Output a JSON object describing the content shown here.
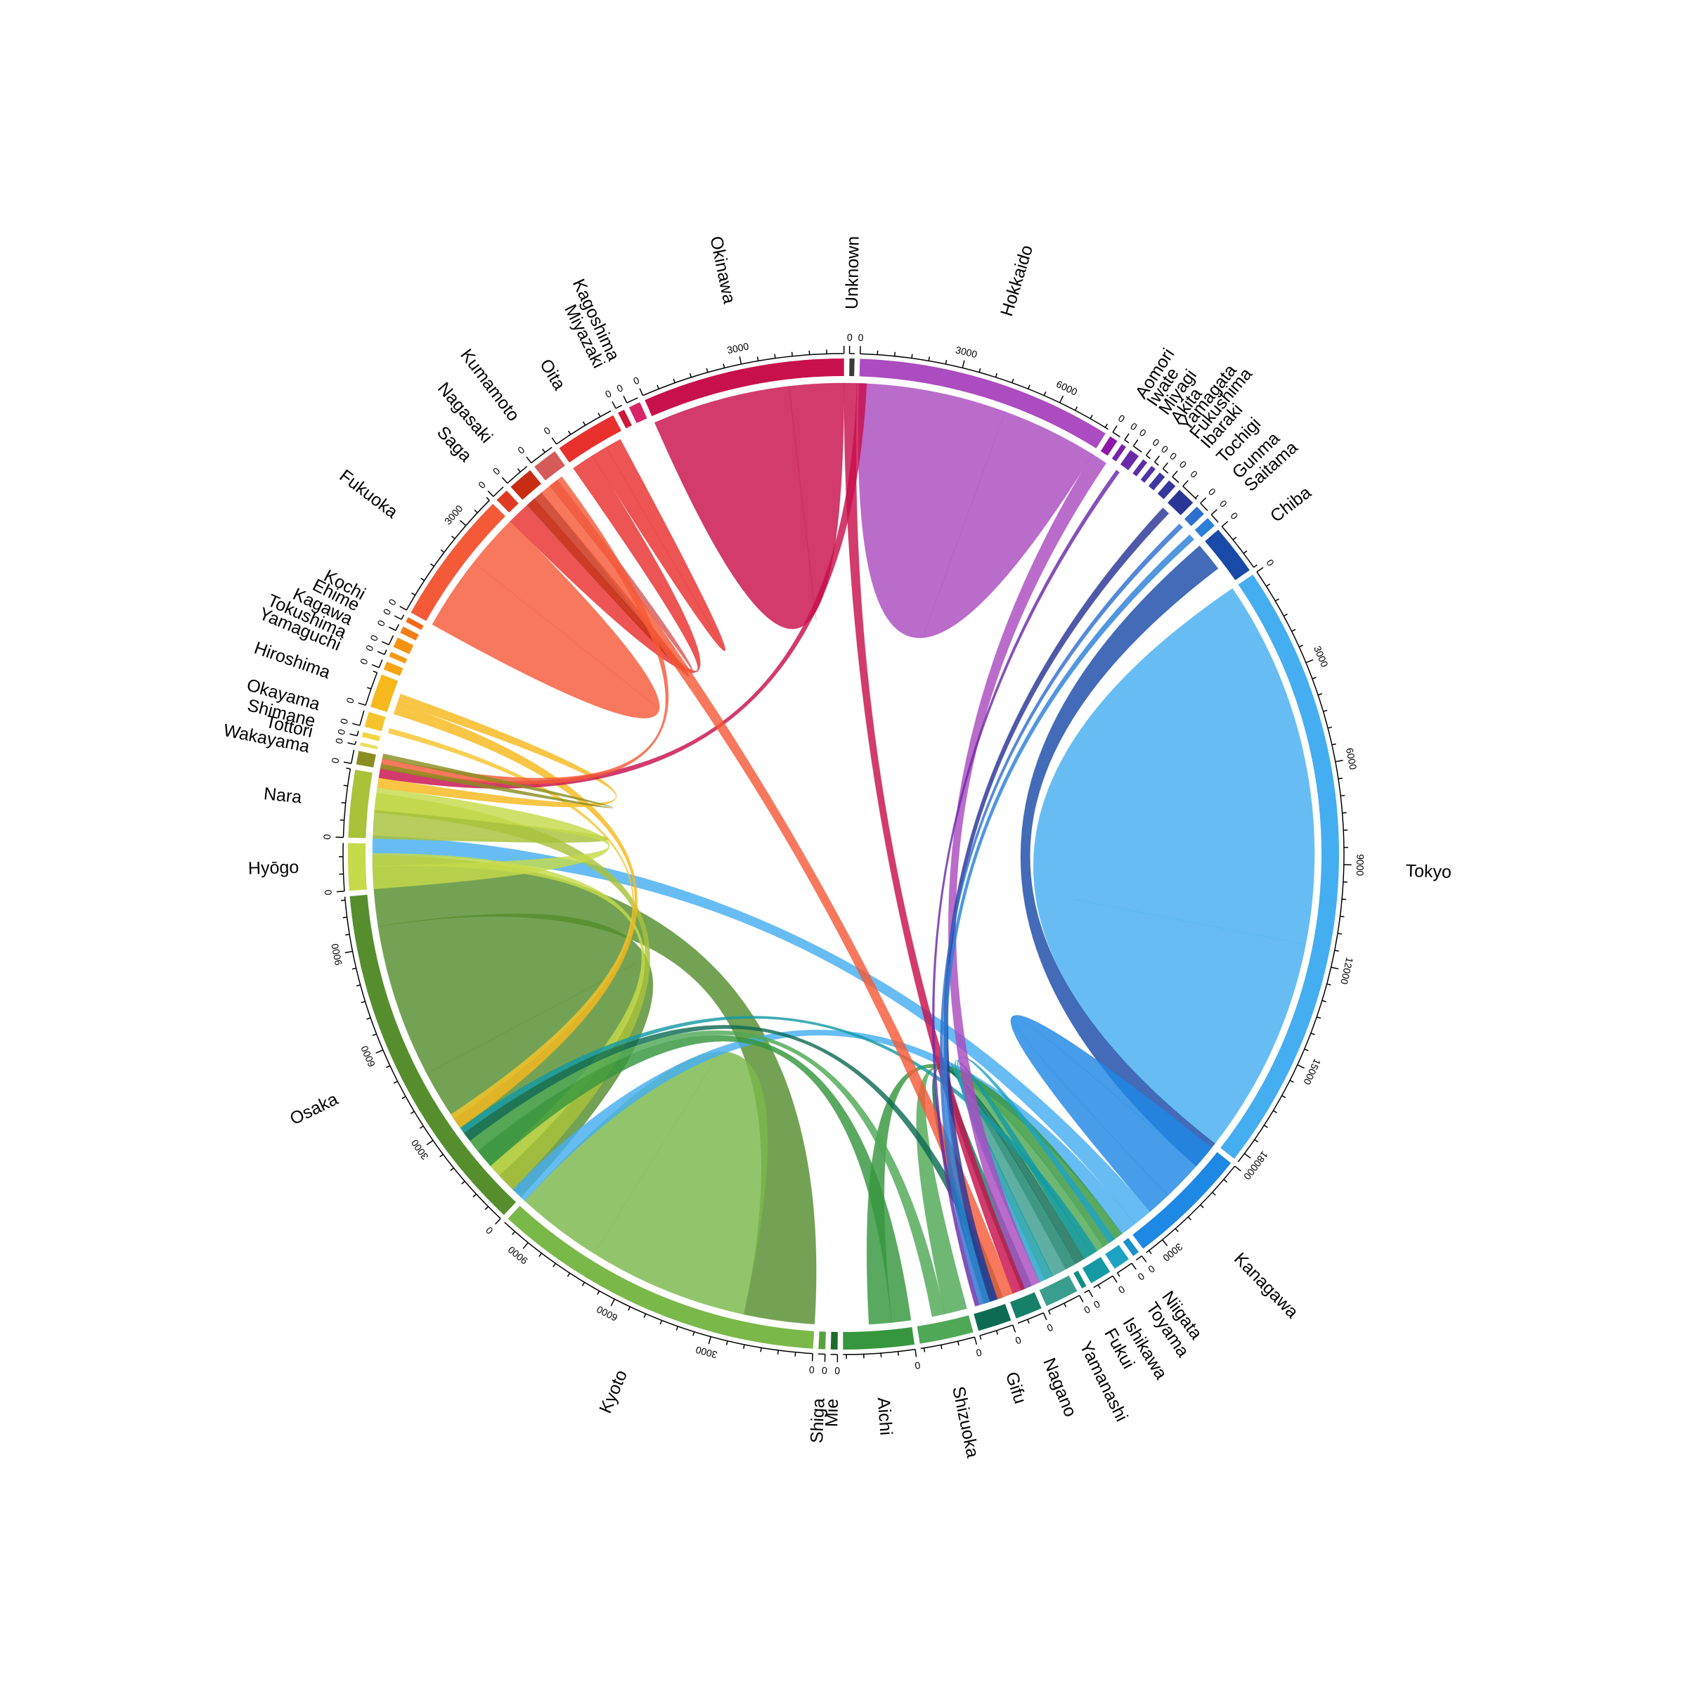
{
  "chart_data": {
    "type": "chord",
    "title": "",
    "segments": [
      {
        "name": "Unknown",
        "value": 150,
        "color": "#3a3a3a",
        "tick_labels": [
          "0"
        ]
      },
      {
        "name": "Hokkaido",
        "value": 7600,
        "color": "#ab4cc0",
        "tick_labels": [
          "0",
          "3000",
          "6000"
        ]
      },
      {
        "name": "Aomori",
        "value": 250,
        "color": "#8e16a8",
        "tick_labels": [
          "0"
        ]
      },
      {
        "name": "Iwate",
        "value": 150,
        "color": "#7a22a8",
        "tick_labels": [
          "0"
        ]
      },
      {
        "name": "Miyagi",
        "value": 300,
        "color": "#6a2aaa",
        "tick_labels": [
          "0"
        ]
      },
      {
        "name": "Akita",
        "value": 150,
        "color": "#5c2ea6",
        "tick_labels": [
          "0"
        ]
      },
      {
        "name": "Yamagata",
        "value": 150,
        "color": "#4f33a6",
        "tick_labels": [
          "0"
        ]
      },
      {
        "name": "Fukushima",
        "value": 200,
        "color": "#3f35a3",
        "tick_labels": [
          "0"
        ]
      },
      {
        "name": "Ibaraki",
        "value": 250,
        "color": "#35369e",
        "tick_labels": [
          "0"
        ]
      },
      {
        "name": "Tochigi",
        "value": 550,
        "color": "#2a3596",
        "tick_labels": [
          "0"
        ]
      },
      {
        "name": "Gunma",
        "value": 300,
        "color": "#2f6fd0",
        "tick_labels": [
          "0"
        ]
      },
      {
        "name": "Saitama",
        "value": 300,
        "color": "#2a80d8",
        "tick_labels": [
          "0"
        ]
      },
      {
        "name": "Chiba",
        "value": 1500,
        "color": "#1a4aa8",
        "tick_labels": [
          "0"
        ]
      },
      {
        "name": "Tokyo",
        "value": 18300,
        "color": "#45aef0",
        "tick_labels": [
          "0",
          "3000",
          "6000",
          "9000",
          "12000",
          "15000",
          "18000"
        ]
      },
      {
        "name": "Kanagawa",
        "value": 3600,
        "color": "#1e88e5",
        "tick_labels": [
          "0",
          "3000"
        ]
      },
      {
        "name": "Niigata",
        "value": 200,
        "color": "#1a8fc8",
        "tick_labels": [
          "0"
        ]
      },
      {
        "name": "Toyama",
        "value": 500,
        "color": "#1ea2c4",
        "tick_labels": [
          "0"
        ]
      },
      {
        "name": "Ishikawa",
        "value": 650,
        "color": "#159aa4",
        "tick_labels": [
          "0"
        ]
      },
      {
        "name": "Fukui",
        "value": 150,
        "color": "#118c88",
        "tick_labels": [
          "0"
        ]
      },
      {
        "name": "Yamanashi",
        "value": 1000,
        "color": "#3a9e8e",
        "tick_labels": [
          "0"
        ]
      },
      {
        "name": "Nagano",
        "value": 800,
        "color": "#168068",
        "tick_labels": [
          "0"
        ]
      },
      {
        "name": "Gifu",
        "value": 1000,
        "color": "#0d6b54",
        "tick_labels": [
          "0"
        ]
      },
      {
        "name": "Shizuoka",
        "value": 1600,
        "color": "#4ea856",
        "tick_labels": [
          "0"
        ]
      },
      {
        "name": "Aichi",
        "value": 2100,
        "color": "#36963e",
        "tick_labels": [
          "0"
        ]
      },
      {
        "name": "Mie",
        "value": 200,
        "color": "#1f6b2a",
        "tick_labels": [
          "0"
        ]
      },
      {
        "name": "Shiga",
        "value": 200,
        "color": "#5aa040",
        "tick_labels": [
          "0"
        ]
      },
      {
        "name": "Kyoto",
        "value": 9900,
        "color": "#7ab84a",
        "tick_labels": [
          "0",
          "3000",
          "6000",
          "9000"
        ]
      },
      {
        "name": "Osaka",
        "value": 10600,
        "color": "#568e2e",
        "tick_labels": [
          "0",
          "3000",
          "6000",
          "9000"
        ]
      },
      {
        "name": "Hyōgo",
        "value": 1400,
        "color": "#c6da4a",
        "tick_labels": [
          "0"
        ]
      },
      {
        "name": "Nara",
        "value": 2000,
        "color": "#a8c23a",
        "tick_labels": [
          "0"
        ]
      },
      {
        "name": "Wakayama",
        "value": 400,
        "color": "#8a8e20",
        "tick_labels": [
          "0"
        ]
      },
      {
        "name": "Tottori",
        "value": 100,
        "color": "#e8e05a",
        "tick_labels": [
          "0"
        ]
      },
      {
        "name": "Shimane",
        "value": 150,
        "color": "#f0d640",
        "tick_labels": [
          "0"
        ]
      },
      {
        "name": "Okayama",
        "value": 450,
        "color": "#f5c42c",
        "tick_labels": [
          "0"
        ]
      },
      {
        "name": "Hiroshima",
        "value": 1000,
        "color": "#f7b81c",
        "tick_labels": [
          "0"
        ]
      },
      {
        "name": "Yamaguchi",
        "value": 250,
        "color": "#f7a512",
        "tick_labels": [
          "0"
        ]
      },
      {
        "name": "Tokushima",
        "value": 150,
        "color": "#f59a10",
        "tick_labels": [
          "0"
        ]
      },
      {
        "name": "Kagawa",
        "value": 300,
        "color": "#f59212",
        "tick_labels": [
          "0"
        ]
      },
      {
        "name": "Ehime",
        "value": 200,
        "color": "#f47d14",
        "tick_labels": [
          "0"
        ]
      },
      {
        "name": "Kochi",
        "value": 150,
        "color": "#f26818",
        "tick_labels": [
          "0"
        ]
      },
      {
        "name": "Fukuoka",
        "value": 4000,
        "color": "#f55a38",
        "tick_labels": [
          "0",
          "3000"
        ]
      },
      {
        "name": "Saga",
        "value": 400,
        "color": "#e03a22",
        "tick_labels": [
          "0"
        ]
      },
      {
        "name": "Nagasaki",
        "value": 750,
        "color": "#c82d14",
        "tick_labels": [
          "0"
        ]
      },
      {
        "name": "Kumamoto",
        "value": 750,
        "color": "#d55a5a",
        "tick_labels": [
          "0"
        ]
      },
      {
        "name": "Oita",
        "value": 1850,
        "color": "#e8302d",
        "tick_labels": [
          "0"
        ]
      },
      {
        "name": "Miyazaki",
        "value": 200,
        "color": "#cc1a3a",
        "tick_labels": [
          "0"
        ]
      },
      {
        "name": "Kagoshima",
        "value": 350,
        "color": "#d8256a",
        "tick_labels": [
          "0"
        ]
      },
      {
        "name": "Okinawa",
        "value": 6000,
        "color": "#c8104c",
        "tick_labels": [
          "0",
          "3000"
        ]
      }
    ],
    "flows": [
      {
        "source": "Hokkaido",
        "target": "Hokkaido",
        "value": 4600
      },
      {
        "source": "Okinawa",
        "target": "Okinawa",
        "value": 4300
      },
      {
        "source": "Tokyo",
        "target": "Tokyo",
        "value": 11500
      },
      {
        "source": "Osaka",
        "target": "Osaka",
        "value": 4800
      },
      {
        "source": "Osaka",
        "target": "Kyoto",
        "value": 2200
      },
      {
        "source": "Kyoto",
        "target": "Kyoto",
        "value": 5000
      },
      {
        "source": "Fukuoka",
        "target": "Fukuoka",
        "value": 2300
      },
      {
        "source": "Oita",
        "target": "Fukuoka",
        "value": 700
      },
      {
        "source": "Kumamoto",
        "target": "Fukuoka",
        "value": 300
      },
      {
        "source": "Nagasaki",
        "target": "Fukuoka",
        "value": 300
      },
      {
        "source": "Chiba",
        "target": "Tokyo",
        "value": 900
      },
      {
        "source": "Kanagawa",
        "target": "Tokyo",
        "value": 2000
      },
      {
        "source": "Tokyo",
        "target": "Osaka",
        "value": 600
      },
      {
        "source": "Tokyo",
        "target": "Kyoto",
        "value": 500
      },
      {
        "source": "Nara",
        "target": "Osaka",
        "value": 800
      },
      {
        "source": "Nara",
        "target": "Kyoto",
        "value": 600
      },
      {
        "source": "Hyōgo",
        "target": "Osaka",
        "value": 700
      },
      {
        "source": "Hyōgo",
        "target": "Kyoto",
        "value": 400
      },
      {
        "source": "Aichi",
        "target": "Kyoto",
        "value": 600
      },
      {
        "source": "Aichi",
        "target": "Tokyo",
        "value": 700
      },
      {
        "source": "Shizuoka",
        "target": "Tokyo",
        "value": 700
      },
      {
        "source": "Shizuoka",
        "target": "Kyoto",
        "value": 400
      },
      {
        "source": "Gifu",
        "target": "Kyoto",
        "value": 300
      },
      {
        "source": "Gifu",
        "target": "Tokyo",
        "value": 300
      },
      {
        "source": "Nagano",
        "target": "Tokyo",
        "value": 350
      },
      {
        "source": "Yamanashi",
        "target": "Tokyo",
        "value": 450
      },
      {
        "source": "Ishikawa",
        "target": "Kyoto",
        "value": 200
      },
      {
        "source": "Ishikawa",
        "target": "Tokyo",
        "value": 250
      },
      {
        "source": "Toyama",
        "target": "Tokyo",
        "value": 200
      },
      {
        "source": "Hiroshima",
        "target": "Kyoto",
        "value": 350
      },
      {
        "source": "Hiroshima",
        "target": "Osaka",
        "value": 300
      },
      {
        "source": "Okayama",
        "target": "Kyoto",
        "value": 150
      },
      {
        "source": "Hokkaido",
        "target": "Tokyo",
        "value": 500
      },
      {
        "source": "Okinawa",
        "target": "Tokyo",
        "value": 400
      },
      {
        "source": "Okinawa",
        "target": "Osaka",
        "value": 300
      },
      {
        "source": "Fukuoka",
        "target": "Tokyo",
        "value": 500
      },
      {
        "source": "Fukuoka",
        "target": "Osaka",
        "value": 300
      },
      {
        "source": "Oita",
        "target": "Oita",
        "value": 500
      },
      {
        "source": "Tochigi",
        "target": "Tokyo",
        "value": 250
      },
      {
        "source": "Saitama",
        "target": "Tokyo",
        "value": 200
      },
      {
        "source": "Gunma",
        "target": "Tokyo",
        "value": 150
      },
      {
        "source": "Miyagi",
        "target": "Tokyo",
        "value": 120
      },
      {
        "source": "Wakayama",
        "target": "Osaka",
        "value": 150
      }
    ]
  }
}
